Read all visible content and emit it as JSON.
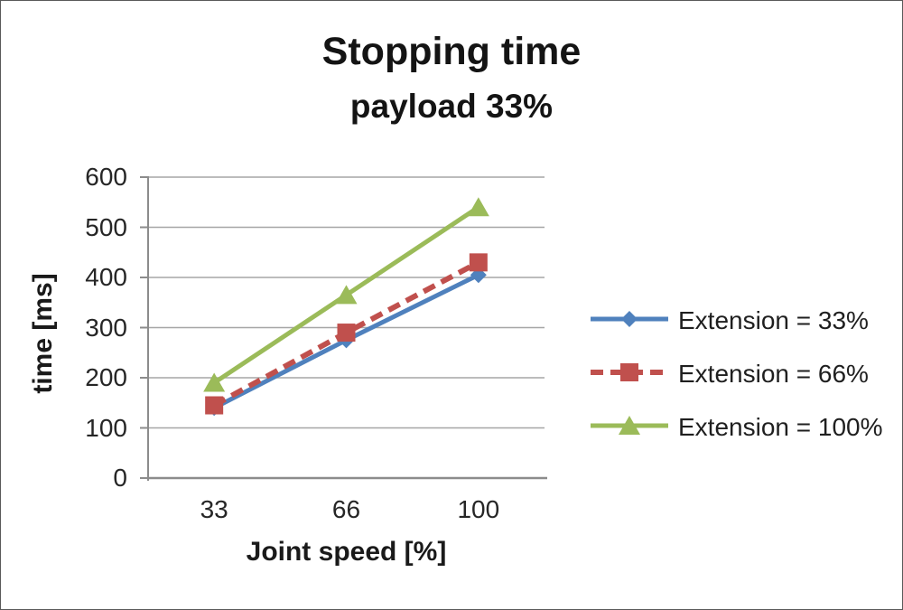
{
  "chart_data": {
    "type": "line",
    "title": "Stopping time",
    "subtitle": "payload 33%",
    "xlabel": "Joint speed [%]",
    "ylabel": "time [ms]",
    "categories": [
      "33",
      "66",
      "100"
    ],
    "ylim": [
      0,
      600
    ],
    "ytick_step": 100,
    "yticks": [
      "600",
      "500",
      "400",
      "300",
      "200",
      "100",
      "0"
    ],
    "grid": true,
    "legend_position": "right",
    "series": [
      {
        "name": "Extension = 33%",
        "values": [
          140,
          275,
          405
        ],
        "color": "#4F81BD",
        "marker": "diamond",
        "line": "solid"
      },
      {
        "name": "Extension = 66%",
        "values": [
          145,
          290,
          430
        ],
        "color": "#C0504D",
        "marker": "square",
        "line": "dashed"
      },
      {
        "name": "Extension = 100%",
        "values": [
          190,
          365,
          540
        ],
        "color": "#9BBB59",
        "marker": "triangle",
        "line": "solid"
      }
    ],
    "colors": {
      "gridline": "#A6A6A6",
      "axis": "#8C8C8C",
      "tick_text": "#262626",
      "title_text": "#141414"
    }
  }
}
